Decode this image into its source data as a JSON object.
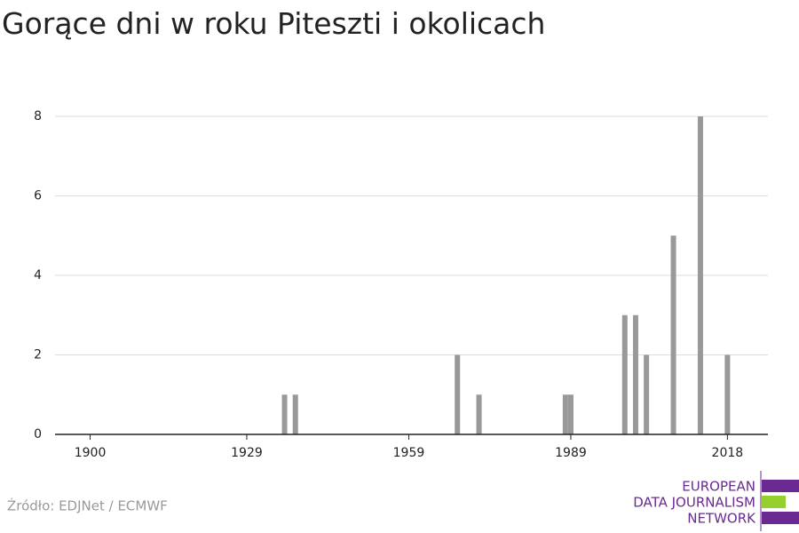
{
  "chart_data": {
    "type": "bar",
    "title": "Gorące dni w roku Piteszti i okolicach",
    "x": [
      1936,
      1938,
      1968,
      1972,
      1988,
      1989,
      1999,
      2001,
      2003,
      2008,
      2013,
      2018
    ],
    "values": [
      1,
      1,
      2,
      1,
      1,
      1,
      3,
      3,
      2,
      5,
      8,
      2
    ],
    "color": "#999999",
    "xlim": [
      1893.5,
      2025.5
    ],
    "xticks": [
      1900,
      1929,
      1959,
      1989,
      2018
    ],
    "ylim": [
      0,
      8
    ],
    "yticks": [
      0,
      2,
      4,
      6,
      8
    ],
    "grid": true,
    "source": "Źródło: EDJNet / ECMWF",
    "logo": [
      "EUROPEAN",
      "DATA JOURNALISM",
      "NETWORK"
    ]
  }
}
